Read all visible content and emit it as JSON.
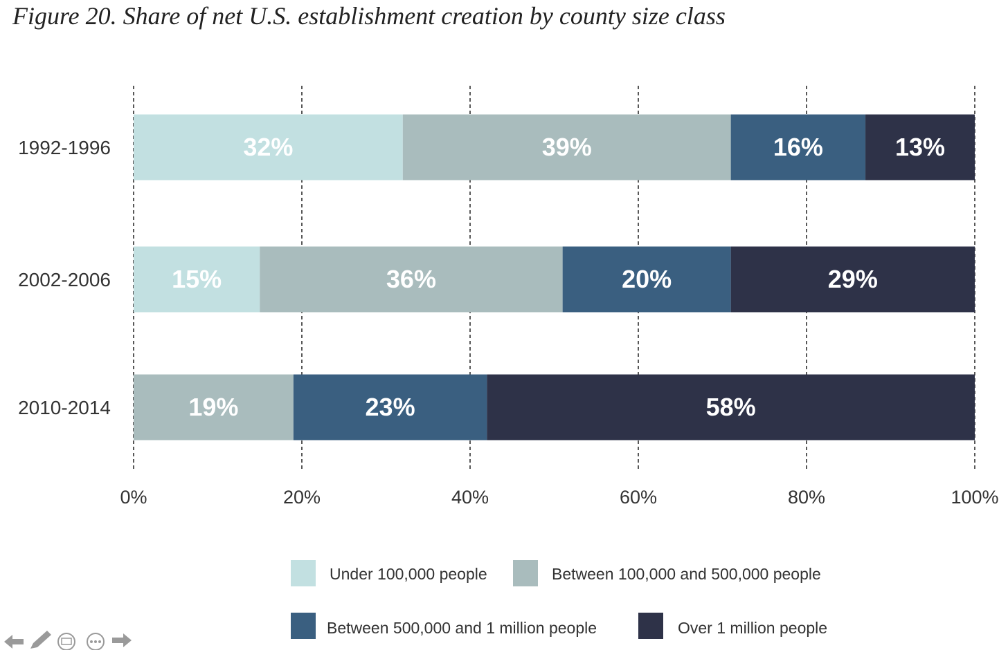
{
  "title": "Figure 20. Share of net U.S. establishment creation by county size class",
  "chart_data": {
    "type": "bar",
    "orientation": "horizontal",
    "stacked": true,
    "categories": [
      "1992-1996",
      "2002-2006",
      "2010-2014"
    ],
    "series": [
      {
        "name": "Under 100,000 people",
        "color": "#c2e0e1",
        "labels": [
          "32%",
          "15%",
          ""
        ],
        "values": [
          32,
          15,
          0
        ]
      },
      {
        "name": "Between 100,000 and 500,000 people",
        "color": "#a9bcbd",
        "labels": [
          "39%",
          "36%",
          "19%"
        ],
        "values": [
          39,
          36,
          19
        ]
      },
      {
        "name": "Between 500,000 and 1 million people",
        "color": "#3a5f80",
        "labels": [
          "16%",
          "20%",
          "23%"
        ],
        "values": [
          16,
          20,
          23
        ]
      },
      {
        "name": "Over 1 million people",
        "color": "#2e3248",
        "labels": [
          "13%",
          "29%",
          "58%"
        ],
        "values": [
          13,
          29,
          58
        ]
      }
    ],
    "xlim": [
      0,
      100
    ],
    "x_ticks": [
      "0%",
      "20%",
      "40%",
      "60%",
      "80%",
      "100%"
    ],
    "grid": "vertical dashed",
    "legend": "bottom"
  },
  "nav": {
    "icons": [
      "arrow-left-icon",
      "pen-icon",
      "captions-icon",
      "more-icon",
      "arrow-right-icon"
    ]
  }
}
